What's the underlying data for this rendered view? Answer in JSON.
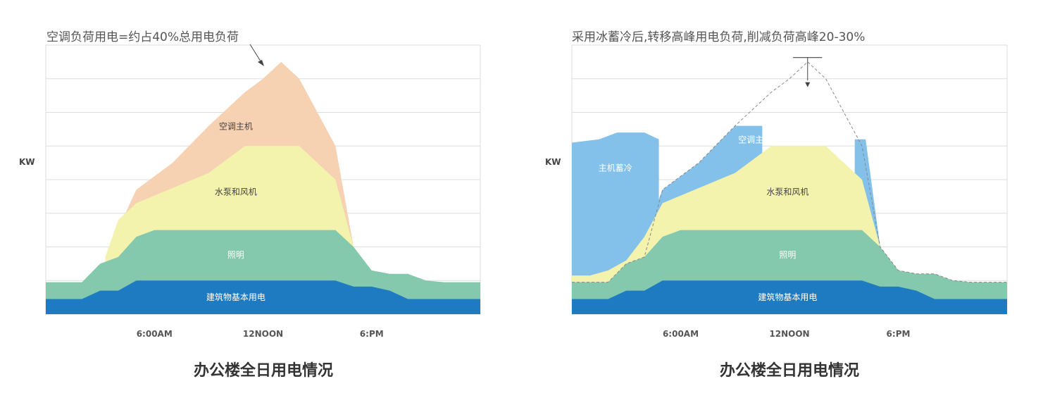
{
  "chart_data": [
    {
      "type": "area",
      "title": "办公楼全日用电情况",
      "annotation": "空调负荷用电=约占40%总用电负荷",
      "ylabel": "KW",
      "x_ticks": [
        "6:00AM",
        "12NOON",
        "6:PM"
      ],
      "x_domain": [
        0,
        24
      ],
      "ylim": [
        0,
        8
      ],
      "grid": true,
      "layers": [
        {
          "name": "建筑物基本用电",
          "color": "#1f7bc1",
          "x": [
            0,
            2,
            3,
            4,
            5,
            16,
            17,
            18,
            19,
            20,
            24
          ],
          "top": [
            0.45,
            0.45,
            0.7,
            0.7,
            1.0,
            1.0,
            0.82,
            0.82,
            0.7,
            0.45,
            0.45
          ]
        },
        {
          "name": "照明",
          "color": "#84c8ad",
          "x": [
            0,
            2,
            3,
            4,
            5,
            6,
            16,
            17,
            18,
            19,
            20,
            21,
            22,
            24
          ],
          "top": [
            0.95,
            0.95,
            1.5,
            1.7,
            2.3,
            2.5,
            2.5,
            2.0,
            1.3,
            1.2,
            1.2,
            1.0,
            0.95,
            0.95
          ]
        },
        {
          "name": "水泵和风机",
          "color": "#f3f3ad",
          "x": [
            3.3,
            4,
            5,
            9,
            11,
            14,
            16,
            17
          ],
          "top": [
            1.72,
            2.8,
            3.3,
            4.2,
            5.0,
            5.0,
            4.0,
            2.0
          ]
        },
        {
          "name": "空调主机",
          "color": "#f6d1b2",
          "x": [
            3.3,
            5,
            7,
            9,
            11,
            12,
            13,
            14,
            16,
            17
          ],
          "top": [
            1.72,
            3.7,
            4.5,
            5.6,
            6.6,
            7.0,
            7.5,
            7.0,
            5.0,
            2.0
          ]
        }
      ]
    },
    {
      "type": "area",
      "title": "办公楼全日用电情况",
      "annotation": "采用冰蓄冷后,转移高峰用电负荷,削减负荷高峰20-30%",
      "ylabel": "KW",
      "x_ticks": [
        "6:00AM",
        "12NOON",
        "6:PM"
      ],
      "x_domain": [
        0,
        24
      ],
      "ylim": [
        0,
        8
      ],
      "grid": true,
      "layers": [
        {
          "name": "建筑物基本用电",
          "color": "#1f7bc1",
          "x": [
            0,
            2,
            3,
            4,
            5,
            16,
            17,
            18,
            19,
            20,
            24
          ],
          "top": [
            0.45,
            0.45,
            0.7,
            0.7,
            1.0,
            1.0,
            0.82,
            0.82,
            0.7,
            0.45,
            0.45
          ]
        },
        {
          "name": "照明",
          "color": "#84c8ad",
          "x": [
            0,
            2,
            3,
            4,
            5,
            6,
            16,
            17,
            18,
            19,
            20,
            21,
            22,
            24
          ],
          "top": [
            0.95,
            0.95,
            1.5,
            1.7,
            2.3,
            2.5,
            2.5,
            2.0,
            1.3,
            1.2,
            1.2,
            1.0,
            0.95,
            0.95
          ]
        },
        {
          "name": "水泵和风机",
          "color": "#f3f3ad",
          "x": [
            0,
            1,
            2,
            3,
            4,
            5,
            9,
            11,
            14,
            16,
            17
          ],
          "top": [
            1.15,
            1.15,
            1.3,
            1.6,
            2.3,
            3.3,
            4.2,
            5.0,
            5.0,
            4.0,
            2.0
          ]
        },
        {
          "name": "空调主机",
          "color": "#84c1ea",
          "x": [
            4,
            5,
            7,
            9,
            10.5
          ],
          "top": [
            2.3,
            3.7,
            4.5,
            5.6,
            5.6
          ]
        },
        {
          "name": "空调主机",
          "color": "#84c1ea",
          "x": [
            15.6,
            16.2,
            17
          ],
          "top": [
            5.2,
            5.2,
            2.0
          ]
        },
        {
          "name": "主机蓄冷",
          "color": "#84c1ea",
          "x": [
            0,
            1.5,
            2.5,
            4,
            4.8
          ],
          "top": [
            5.1,
            5.2,
            5.4,
            5.4,
            5.2
          ]
        }
      ],
      "original_peak_outline": {
        "x": [
          0,
          2,
          3,
          4,
          5,
          7,
          9,
          11,
          12,
          13,
          14,
          16,
          17,
          18,
          19,
          20,
          21,
          22,
          24
        ],
        "top": [
          0.95,
          0.95,
          1.5,
          1.7,
          3.7,
          4.5,
          5.6,
          6.6,
          7.0,
          7.5,
          7.0,
          5.0,
          2.0,
          1.3,
          1.2,
          1.2,
          1.0,
          0.95,
          0.95
        ]
      }
    }
  ],
  "left": {
    "annotation": "空调负荷用电=约占40%总用电负荷",
    "ylabel": "KW",
    "title": "办公楼全日用电情况",
    "labels": {
      "ac": "空调主机",
      "pump": "水泵和风机",
      "light": "照明",
      "base": "建筑物基本用电"
    },
    "ticks": {
      "t1": "6:00AM",
      "t2": "12NOON",
      "t3": "6:PM"
    }
  },
  "right": {
    "annotation": "采用冰蓄冷后,转移高峰用电负荷,削减负荷高峰20-30%",
    "ylabel": "KW",
    "title": "办公楼全日用电情况",
    "labels": {
      "storage": "主机蓄冷",
      "ac": "空调主机",
      "pump": "水泵和风机",
      "light": "照明",
      "base": "建筑物基本用电"
    },
    "ticks": {
      "t1": "6:00AM",
      "t2": "12NOON",
      "t3": "6:PM"
    }
  }
}
